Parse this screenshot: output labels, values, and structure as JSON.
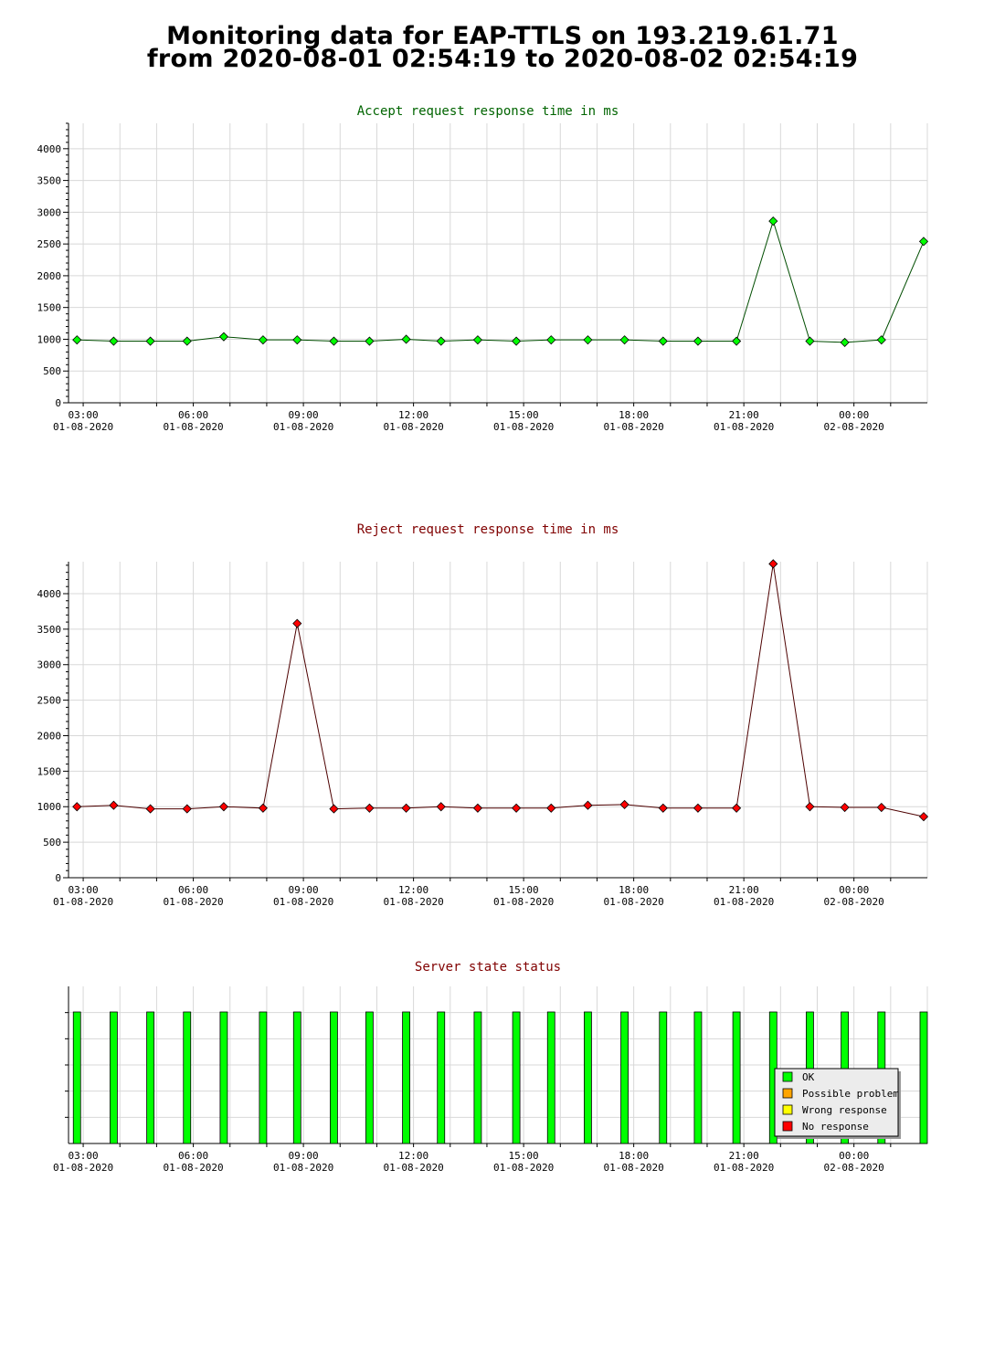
{
  "page": {
    "title_line1": "Monitoring data for EAP-TTLS on 193.219.61.71",
    "title_line2": "from 2020-08-01 02:54:19 to 2020-08-02 02:54:19"
  },
  "colors": {
    "accept": "#00ff00",
    "accept_title": "#006400",
    "reject": "#ff0000",
    "reject_title": "#800000",
    "status_title": "#800000",
    "grid": "#d8d8d8",
    "ok": "#00ff00",
    "possible_problem": "#ffa500",
    "wrong_response": "#ffff00",
    "no_response": "#ff0000"
  },
  "x_axis": {
    "range_hours": [
      2.6,
      26.0
    ],
    "ticks": [
      {
        "hour": 3,
        "time": "03:00",
        "date": "01-08-2020"
      },
      {
        "hour": 6,
        "time": "06:00",
        "date": "01-08-2020"
      },
      {
        "hour": 9,
        "time": "09:00",
        "date": "01-08-2020"
      },
      {
        "hour": 12,
        "time": "12:00",
        "date": "01-08-2020"
      },
      {
        "hour": 15,
        "time": "15:00",
        "date": "01-08-2020"
      },
      {
        "hour": 18,
        "time": "18:00",
        "date": "01-08-2020"
      },
      {
        "hour": 21,
        "time": "21:00",
        "date": "01-08-2020"
      },
      {
        "hour": 24,
        "time": "00:00",
        "date": "02-08-2020"
      }
    ]
  },
  "chart_data": [
    {
      "type": "line",
      "title": "Accept request response time in ms",
      "xlabel": "",
      "ylabel": "",
      "ylim": [
        0,
        4400
      ],
      "yticks": [
        0,
        500,
        1000,
        1500,
        2000,
        2500,
        3000,
        3500,
        4000
      ],
      "grid": true,
      "series": [
        {
          "color": "#00ff00",
          "x": [
            2.83,
            3.83,
            4.83,
            5.83,
            6.83,
            7.9,
            8.83,
            9.83,
            10.8,
            11.8,
            12.75,
            13.75,
            14.8,
            15.75,
            16.75,
            17.75,
            18.8,
            19.75,
            20.8,
            21.8,
            22.8,
            23.75,
            24.75,
            25.9
          ],
          "y": [
            990,
            970,
            970,
            970,
            1040,
            990,
            990,
            970,
            970,
            1000,
            970,
            990,
            970,
            990,
            990,
            990,
            970,
            970,
            970,
            2860,
            970,
            950,
            990,
            2540
          ]
        }
      ]
    },
    {
      "type": "line",
      "title": "Reject request response time in ms",
      "xlabel": "",
      "ylabel": "",
      "ylim": [
        0,
        4450
      ],
      "yticks": [
        0,
        500,
        1000,
        1500,
        2000,
        2500,
        3000,
        3500,
        4000
      ],
      "grid": true,
      "series": [
        {
          "color": "#ff0000",
          "x": [
            2.83,
            3.83,
            4.83,
            5.83,
            6.83,
            7.9,
            8.83,
            9.83,
            10.8,
            11.8,
            12.75,
            13.75,
            14.8,
            15.75,
            16.75,
            17.75,
            18.8,
            19.75,
            20.8,
            21.8,
            22.8,
            23.75,
            24.75,
            25.9
          ],
          "y": [
            1000,
            1020,
            970,
            970,
            1000,
            980,
            3580,
            970,
            980,
            980,
            1000,
            980,
            980,
            980,
            1020,
            1030,
            980,
            980,
            980,
            4420,
            1000,
            990,
            990,
            860
          ]
        }
      ]
    },
    {
      "type": "bar",
      "title": "Server state status",
      "xlabel": "",
      "ylabel": "",
      "grid": true,
      "legend_position": "bottom-right",
      "legend": [
        {
          "label": "OK",
          "color": "#00ff00"
        },
        {
          "label": "Possible problem",
          "color": "#ffa500"
        },
        {
          "label": "Wrong response",
          "color": "#ffff00"
        },
        {
          "label": "No response",
          "color": "#ff0000"
        }
      ],
      "series": [
        {
          "name": "OK",
          "x": [
            2.83,
            3.83,
            4.83,
            5.83,
            6.83,
            7.9,
            8.83,
            9.83,
            10.8,
            11.8,
            12.75,
            13.75,
            14.8,
            15.75,
            16.75,
            17.75,
            18.8,
            19.75,
            20.8,
            21.8,
            22.8,
            23.75,
            24.75,
            25.9
          ],
          "status": [
            "OK",
            "OK",
            "OK",
            "OK",
            "OK",
            "OK",
            "OK",
            "OK",
            "OK",
            "OK",
            "OK",
            "OK",
            "OK",
            "OK",
            "OK",
            "OK",
            "OK",
            "OK",
            "OK",
            "OK",
            "OK",
            "OK",
            "OK",
            "OK"
          ]
        }
      ]
    }
  ]
}
